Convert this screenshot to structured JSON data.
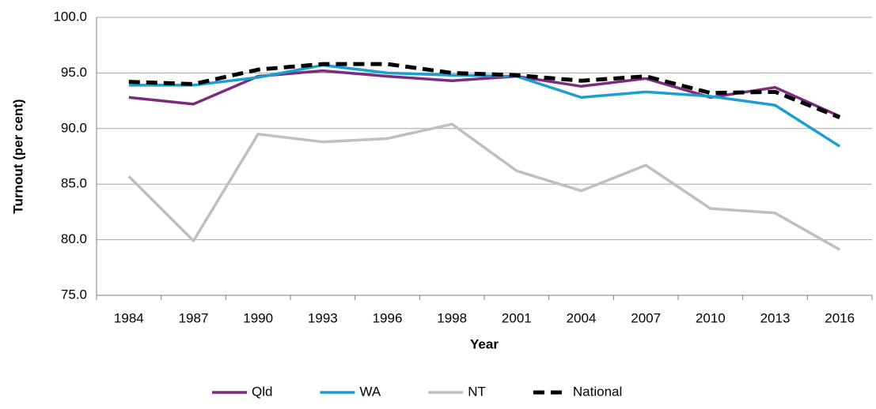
{
  "chart_data": {
    "type": "line",
    "x_label": "Year",
    "y_label": "Turnout (per cent)",
    "categories": [
      "1984",
      "1987",
      "1990",
      "1993",
      "1996",
      "1998",
      "2001",
      "2004",
      "2007",
      "2010",
      "2013",
      "2016"
    ],
    "series": [
      {
        "name": "Qld",
        "color": "#7b2c7e",
        "values": [
          92.8,
          92.2,
          94.7,
          95.2,
          94.7,
          94.3,
          94.7,
          93.8,
          94.5,
          92.8,
          93.7,
          91.1
        ]
      },
      {
        "name": "WA",
        "color": "#1aa0d0",
        "values": [
          93.9,
          93.9,
          94.6,
          95.7,
          95.0,
          94.8,
          94.7,
          92.8,
          93.3,
          92.9,
          92.1,
          88.4
        ]
      },
      {
        "name": "NT",
        "color": "#bfbfbf",
        "values": [
          85.7,
          79.9,
          89.5,
          88.8,
          89.1,
          90.4,
          86.2,
          84.4,
          86.7,
          82.8,
          82.4,
          79.1
        ]
      },
      {
        "name": "National",
        "color": "#000000",
        "dashed": true,
        "values": [
          94.2,
          94.0,
          95.3,
          95.8,
          95.8,
          95.0,
          94.8,
          94.3,
          94.7,
          93.2,
          93.3,
          91.0
        ]
      }
    ],
    "ylim": [
      75,
      100
    ],
    "yticks": [
      {
        "value": 75,
        "label": "75.0"
      },
      {
        "value": 80,
        "label": "80.0"
      },
      {
        "value": 85,
        "label": "85.0"
      },
      {
        "value": 90,
        "label": "90.0"
      },
      {
        "value": 95,
        "label": "95.0"
      },
      {
        "value": 100,
        "label": "100.0"
      }
    ],
    "grid": true,
    "legend": "bottom"
  }
}
